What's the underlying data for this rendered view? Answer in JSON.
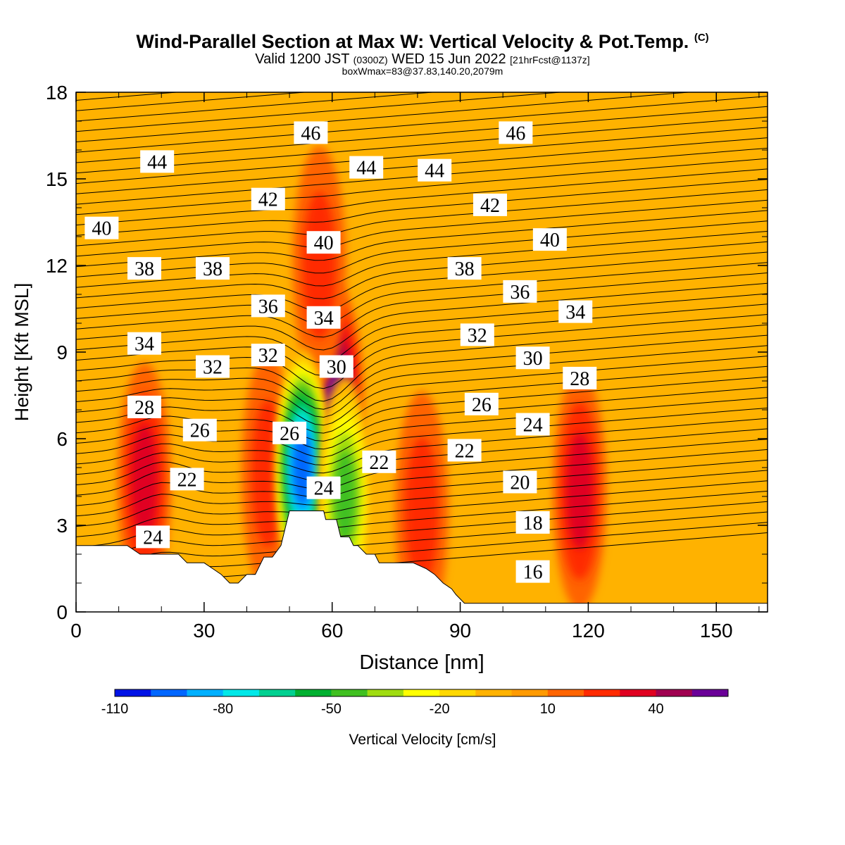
{
  "title": {
    "main": "Wind-Parallel Section at Max W: Vertical Velocity & Pot.Temp.",
    "copyright": "(C)",
    "valid_prefix": "Valid 1200 JST",
    "valid_utc": "(0300Z)",
    "valid_date": "WED 15 Jun 2022",
    "forecast": "[21hrFcst@1137z]",
    "box": "boxWmax=83@37.83,140.20,2079m"
  },
  "chart_data": {
    "type": "heatmap",
    "xlabel": "Distance [nm]",
    "ylabel": "Height [Kft MSL]",
    "xlim": [
      0,
      162
    ],
    "ylim": [
      0,
      18
    ],
    "x_ticks": [
      "0",
      "30",
      "60",
      "90",
      "120",
      "150"
    ],
    "y_ticks": [
      "0",
      "3",
      "6",
      "9",
      "12",
      "15",
      "18"
    ],
    "colorbar": {
      "label": "Vertical Velocity [cm/s]",
      "tick_labels": [
        "-110",
        "-80",
        "-50",
        "-20",
        "10",
        "40"
      ],
      "colors": [
        "#0012e6",
        "#0066ff",
        "#00b0ff",
        "#00e8e8",
        "#00d090",
        "#00b030",
        "#40c020",
        "#a0dc10",
        "#ffff00",
        "#ffd800",
        "#ffb200",
        "#ff9a00",
        "#ff6400",
        "#ff2a00",
        "#e00020",
        "#a00050",
        "#6a0098"
      ]
    },
    "background_color": "#ffb200",
    "updraft_features": [
      {
        "x": 61,
        "y": 7.2,
        "value": 50
      },
      {
        "x": 16,
        "y": 4.5,
        "value": 30
      },
      {
        "x": 45,
        "y": 4.8,
        "value": 25
      },
      {
        "x": 81,
        "y": 3.5,
        "value": 25
      },
      {
        "x": 118,
        "y": 4.2,
        "value": 35
      },
      {
        "x": 57,
        "y": 12.0,
        "value": 20
      }
    ],
    "downdraft_features": [
      {
        "x": 53,
        "y": 5.0,
        "value": -100
      },
      {
        "x": 63,
        "y": 4.0,
        "value": -50
      }
    ],
    "contour_labels": [
      {
        "text": "46",
        "x": 55,
        "y": 16.6
      },
      {
        "text": "46",
        "x": 103,
        "y": 16.6
      },
      {
        "text": "44",
        "x": 19,
        "y": 15.6
      },
      {
        "text": "44",
        "x": 68,
        "y": 15.4
      },
      {
        "text": "44",
        "x": 84,
        "y": 15.3
      },
      {
        "text": "42",
        "x": 45,
        "y": 14.3
      },
      {
        "text": "42",
        "x": 97,
        "y": 14.1
      },
      {
        "text": "40",
        "x": 6,
        "y": 13.3
      },
      {
        "text": "40",
        "x": 58,
        "y": 12.8
      },
      {
        "text": "40",
        "x": 111,
        "y": 12.9
      },
      {
        "text": "38",
        "x": 16,
        "y": 11.9
      },
      {
        "text": "38",
        "x": 32,
        "y": 11.9
      },
      {
        "text": "38",
        "x": 91,
        "y": 11.9
      },
      {
        "text": "36",
        "x": 45,
        "y": 10.6
      },
      {
        "text": "36",
        "x": 104,
        "y": 11.1
      },
      {
        "text": "34",
        "x": 58,
        "y": 10.2
      },
      {
        "text": "34",
        "x": 117,
        "y": 10.4
      },
      {
        "text": "34",
        "x": 16,
        "y": 9.3
      },
      {
        "text": "32",
        "x": 94,
        "y": 9.6
      },
      {
        "text": "32",
        "x": 45,
        "y": 8.9
      },
      {
        "text": "32",
        "x": 32,
        "y": 8.5
      },
      {
        "text": "30",
        "x": 61,
        "y": 8.5
      },
      {
        "text": "30",
        "x": 107,
        "y": 8.8
      },
      {
        "text": "28",
        "x": 118,
        "y": 8.1
      },
      {
        "text": "28",
        "x": 16,
        "y": 7.1
      },
      {
        "text": "26",
        "x": 95,
        "y": 7.2
      },
      {
        "text": "26",
        "x": 29,
        "y": 6.3
      },
      {
        "text": "26",
        "x": 50,
        "y": 6.2
      },
      {
        "text": "24",
        "x": 107,
        "y": 6.5
      },
      {
        "text": "22",
        "x": 91,
        "y": 5.6
      },
      {
        "text": "22",
        "x": 71,
        "y": 5.2
      },
      {
        "text": "22",
        "x": 26,
        "y": 4.6
      },
      {
        "text": "24",
        "x": 58,
        "y": 4.3
      },
      {
        "text": "20",
        "x": 104,
        "y": 4.5
      },
      {
        "text": "18",
        "x": 107,
        "y": 3.1
      },
      {
        "text": "24",
        "x": 18,
        "y": 2.6
      },
      {
        "text": "16",
        "x": 107,
        "y": 1.4
      }
    ],
    "terrain_km": [
      [
        0,
        2.3
      ],
      [
        3,
        2.3
      ],
      [
        6,
        2.3
      ],
      [
        9,
        2.3
      ],
      [
        12,
        2.3
      ],
      [
        15,
        2.0
      ],
      [
        18,
        2.0
      ],
      [
        21,
        2.0
      ],
      [
        24,
        2.0
      ],
      [
        26,
        1.7
      ],
      [
        28,
        1.7
      ],
      [
        30,
        1.7
      ],
      [
        32,
        1.5
      ],
      [
        34,
        1.3
      ],
      [
        36,
        1.0
      ],
      [
        38,
        1.0
      ],
      [
        40,
        1.3
      ],
      [
        42,
        1.3
      ],
      [
        44,
        1.9
      ],
      [
        46,
        1.9
      ],
      [
        48,
        2.3
      ],
      [
        49,
        2.9
      ],
      [
        50,
        3.5
      ],
      [
        52,
        3.5
      ],
      [
        55,
        3.5
      ],
      [
        58,
        3.5
      ],
      [
        58.5,
        3.2
      ],
      [
        61,
        3.2
      ],
      [
        62,
        2.6
      ],
      [
        64,
        2.6
      ],
      [
        65,
        2.3
      ],
      [
        66,
        2.3
      ],
      [
        68,
        2.0
      ],
      [
        70,
        2.0
      ],
      [
        71,
        1.7
      ],
      [
        73,
        1.7
      ],
      [
        76,
        1.7
      ],
      [
        79,
        1.7
      ],
      [
        82,
        1.5
      ],
      [
        84,
        1.3
      ],
      [
        86,
        1.0
      ],
      [
        88,
        0.8
      ],
      [
        89,
        0.6
      ],
      [
        91,
        0.3
      ],
      [
        162,
        0.3
      ]
    ]
  }
}
